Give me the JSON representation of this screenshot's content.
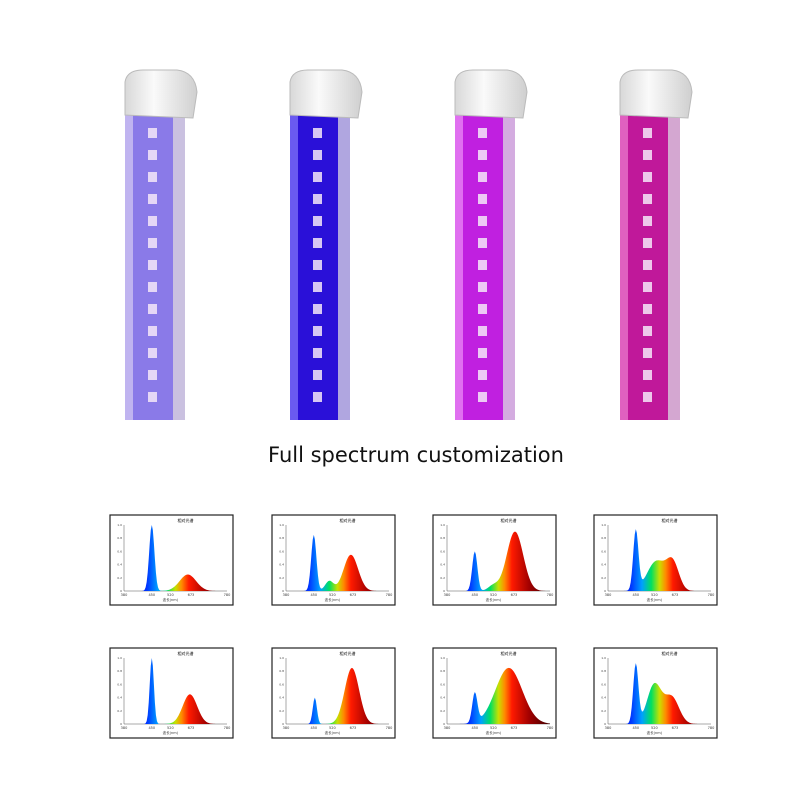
{
  "header": {
    "title": "Full spectrum customization"
  },
  "spectrum_panel": {
    "title": "相对光谱",
    "x_labels": [
      "380",
      "450",
      "520",
      "673",
      "780"
    ],
    "x_axis_label": "波长(nm)",
    "y_labels": [
      "1.0",
      "0.8",
      "0.6",
      "0.4",
      "0.2",
      "0"
    ]
  }
}
